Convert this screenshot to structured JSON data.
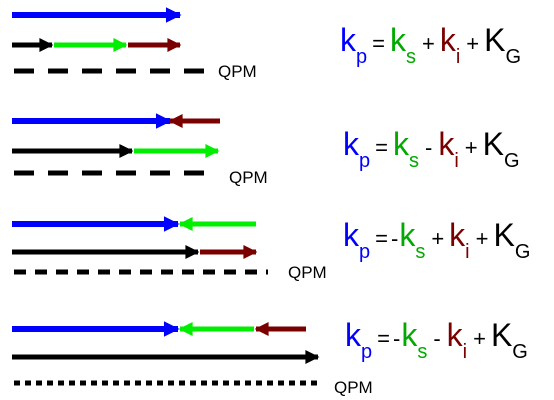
{
  "colors": {
    "pump": "#0000ff",
    "signal": "#00ee00",
    "idler": "#7a0000",
    "grating": "#000000",
    "text": "#000000"
  },
  "labels": {
    "qpm": "QPM",
    "k": "k",
    "K": "K",
    "sub_p": "p",
    "sub_s": "s",
    "sub_i": "i",
    "sub_G": "G",
    "eq": "=",
    "plus": "+",
    "minus": "-",
    "neg": "-"
  },
  "rows": [
    {
      "id": "row-1",
      "grating_style": "long-dash",
      "equation": {
        "s_op": "",
        "i_op": "+"
      }
    },
    {
      "id": "row-2",
      "grating_style": "long-dash",
      "equation": {
        "s_op": "",
        "i_op": "-"
      }
    },
    {
      "id": "row-3",
      "grating_style": "medium-dash",
      "equation": {
        "s_op": "-",
        "i_op": "+"
      }
    },
    {
      "id": "row-4",
      "grating_style": "short-dash",
      "equation": {
        "s_op": "-",
        "i_op": "-"
      }
    }
  ]
}
